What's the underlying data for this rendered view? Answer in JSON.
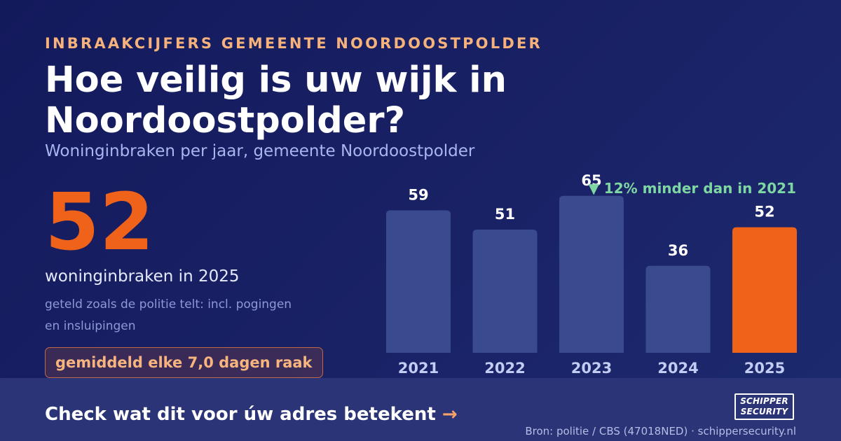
{
  "header": {
    "eyebrow": "INBRAAKCIJFERS GEMEENTE NOORDOOSTPOLDER",
    "title": "Hoe veilig is uw wijk in Noordoostpolder?",
    "subtitle": "Woninginbraken per jaar, gemeente Noordoostpolder"
  },
  "stat": {
    "value": "52",
    "label": "woninginbraken in 2025",
    "note": "geteld zoals de politie telt: incl. pogingen en insluipingen",
    "frequency": "gemiddeld elke 7,0 dagen raak"
  },
  "chart_data": {
    "type": "bar",
    "title": "",
    "xlabel": "",
    "ylabel": "",
    "categories": [
      "2021",
      "2022",
      "2023",
      "2024",
      "2025"
    ],
    "values": [
      59,
      51,
      65,
      36,
      52
    ],
    "highlight_index": 4,
    "annotation": "▼ 12% minder dan in 2021",
    "colors": {
      "bar": "#3a4a8f",
      "highlight": "#ee6219",
      "value_label": "#ffffff",
      "tick_label": "#c3ccf2",
      "annotation": "#7ed7a3"
    }
  },
  "footer": {
    "cta": "Check wat dit voor úw adres betekent",
    "cta_arrow": "→",
    "logo_line1": "SCHIPPER",
    "logo_line2": "SECURITY",
    "source": "Bron: politie / CBS (47018NED) · schippersecurity.nl"
  }
}
